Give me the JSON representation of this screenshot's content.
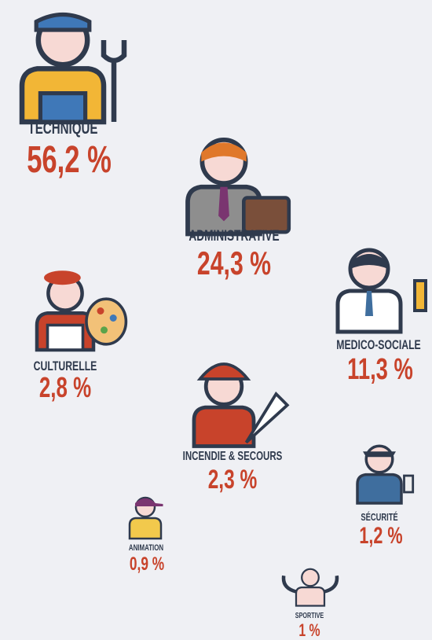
{
  "items": [
    {
      "label": "TECHNIQUE",
      "value": "56,2 %"
    },
    {
      "label": "ADMINISTRATIVE",
      "value": "24,3 %"
    },
    {
      "label": "MEDICO-SOCIALE",
      "value": "11,3 %"
    },
    {
      "label": "CULTURELLE",
      "value": "2,8 %"
    },
    {
      "label": "INCENDIE & SECOURS",
      "value": "2,3 %"
    },
    {
      "label": "SÉCURITÉ",
      "value": "1,2 %"
    },
    {
      "label": "ANIMATION",
      "value": "0,9 %"
    },
    {
      "label": "SPORTIVE",
      "value": "1 %"
    }
  ]
}
